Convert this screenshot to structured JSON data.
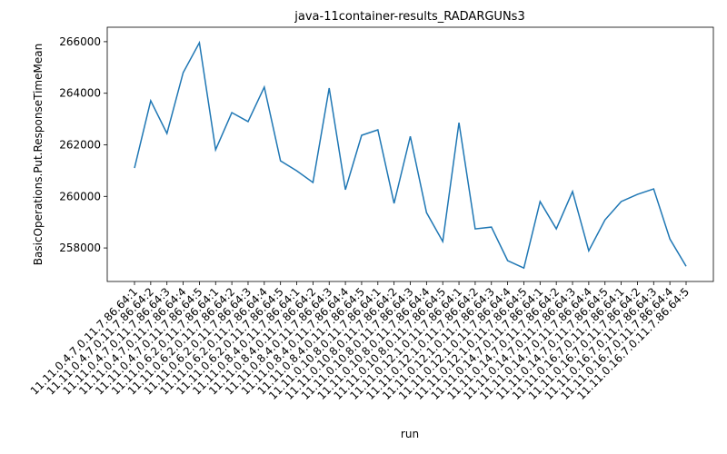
{
  "chart_data": {
    "type": "line",
    "title": "java-11container-results_RADARGUNs3",
    "xlabel": "run",
    "ylabel": "BasicOperations.Put.ResponseTimeMean",
    "categories": [
      "11.11.0.4.7.0.11.7.86.64:1",
      "11.11.0.4.7.0.11.7.86.64:2",
      "11.11.0.4.7.0.11.7.86.64:3",
      "11.11.0.4.7.0.11.7.86.64:4",
      "11.11.0.4.7.0.11.7.86.64:5",
      "11.11.0.6.2.0.11.7.86.64:1",
      "11.11.0.6.2.0.11.7.86.64:2",
      "11.11.0.6.2.0.11.7.86.64:3",
      "11.11.0.6.2.0.11.7.86.64:4",
      "11.11.0.6.2.0.11.7.86.64:5",
      "11.11.0.8.4.0.11.7.86.64:1",
      "11.11.0.8.4.0.11.7.86.64:2",
      "11.11.0.8.4.0.11.7.86.64:3",
      "11.11.0.8.4.0.11.7.86.64:4",
      "11.11.0.8.4.0.11.7.86.64:5",
      "11.11.0.10.8.0.11.7.86.64:1",
      "11.11.0.10.8.0.11.7.86.64:2",
      "11.11.0.10.8.0.11.7.86.64:3",
      "11.11.0.10.8.0.11.7.86.64:4",
      "11.11.0.10.8.0.11.7.86.64:5",
      "11.11.0.12.1.0.11.7.86.64:1",
      "11.11.0.12.1.0.11.7.86.64:2",
      "11.11.0.12.1.0.11.7.86.64:3",
      "11.11.0.12.1.0.11.7.86.64:4",
      "11.11.0.12.1.0.11.7.86.64:5",
      "11.11.0.14.7.0.11.7.86.64:1",
      "11.11.0.14.7.0.11.7.86.64:2",
      "11.11.0.14.7.0.11.7.86.64:3",
      "11.11.0.14.7.0.11.7.86.64:4",
      "11.11.0.14.7.0.11.7.86.64:5",
      "11.11.0.16.7.0.11.7.86.64:1",
      "11.11.0.16.7.0.11.7.86.64:2",
      "11.11.0.16.7.0.11.7.86.64:3",
      "11.11.0.16.7.0.11.7.86.64:4",
      "11.11.0.16.7.0.11.7.86.64:5"
    ],
    "values": [
      261100,
      263710,
      262440,
      264800,
      265960,
      261810,
      263250,
      262900,
      264240,
      261380,
      260990,
      260540,
      264200,
      260260,
      262370,
      262580,
      259730,
      262330,
      259370,
      258250,
      262860,
      258740,
      258810,
      257510,
      257220,
      259800,
      258740,
      260190,
      257890,
      259090,
      259800,
      260080,
      260290,
      258350,
      257290
    ],
    "color": "#1f77b4",
    "ylim": [
      256700,
      266560
    ],
    "yticks": [
      258000,
      260000,
      262000,
      264000,
      266000
    ]
  }
}
